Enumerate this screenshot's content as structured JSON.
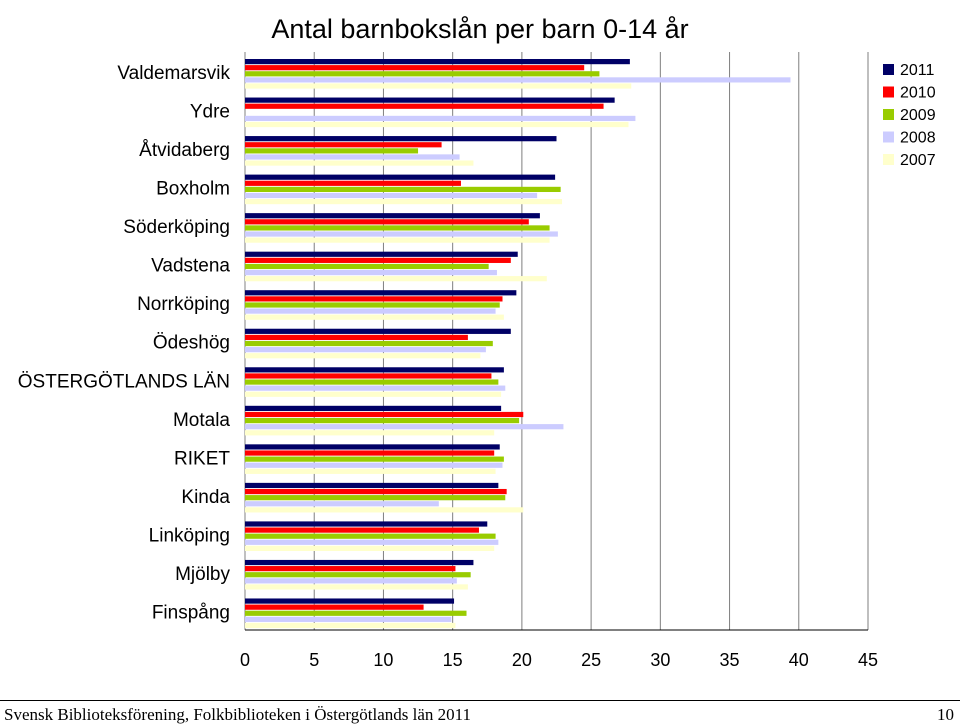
{
  "chart_data": {
    "type": "bar",
    "orientation": "horizontal",
    "title": "Antal barnbokslån per barn 0-14 år",
    "categories": [
      "Valdemarsvik",
      "Ydre",
      "Åtvidaberg",
      "Boxholm",
      "Söderköping",
      "Vadstena",
      "Norrköping",
      "Ödeshög",
      "ÖSTERGÖTLANDS LÄN",
      "Motala",
      "RIKET",
      "Kinda",
      "Linköping",
      "Mjölby",
      "Finspång"
    ],
    "series": [
      {
        "name": "2011",
        "color": "#000066",
        "values": [
          27.8,
          26.7,
          22.5,
          22.4,
          21.3,
          19.7,
          19.6,
          19.2,
          18.7,
          18.5,
          18.4,
          18.3,
          17.5,
          16.5,
          15.1
        ]
      },
      {
        "name": "2010",
        "color": "#ff0000",
        "values": [
          24.5,
          25.9,
          14.2,
          15.6,
          20.5,
          19.2,
          18.6,
          16.1,
          17.8,
          20.1,
          18.0,
          18.9,
          16.9,
          15.2,
          12.9
        ]
      },
      {
        "name": "2009",
        "color": "#99cc00",
        "values": [
          25.6,
          0,
          12.5,
          22.8,
          22.0,
          17.6,
          18.4,
          17.9,
          18.3,
          19.8,
          18.7,
          18.8,
          18.1,
          16.3,
          16.0
        ]
      },
      {
        "name": "2008",
        "color": "#ccccff",
        "values": [
          39.4,
          28.2,
          15.5,
          21.1,
          22.6,
          18.2,
          18.1,
          17.4,
          18.8,
          23.0,
          18.6,
          14.0,
          18.3,
          15.3,
          14.9
        ]
      },
      {
        "name": "2007",
        "color": "#ffffcc",
        "values": [
          27.9,
          27.7,
          16.5,
          22.9,
          22.0,
          21.8,
          18.7,
          17.0,
          18.5,
          18.0,
          18.1,
          20.1,
          18.0,
          16.1,
          15.2
        ]
      }
    ],
    "xticks": [
      0,
      5,
      10,
      15,
      20,
      25,
      30,
      35,
      40,
      45
    ],
    "xlim": [
      0,
      45
    ],
    "grid": "vertical",
    "legend_position": "right"
  },
  "footer": {
    "text": "Svensk Biblioteksförening, Folkbiblioteken i Östergötlands län 2011",
    "page": "10"
  }
}
